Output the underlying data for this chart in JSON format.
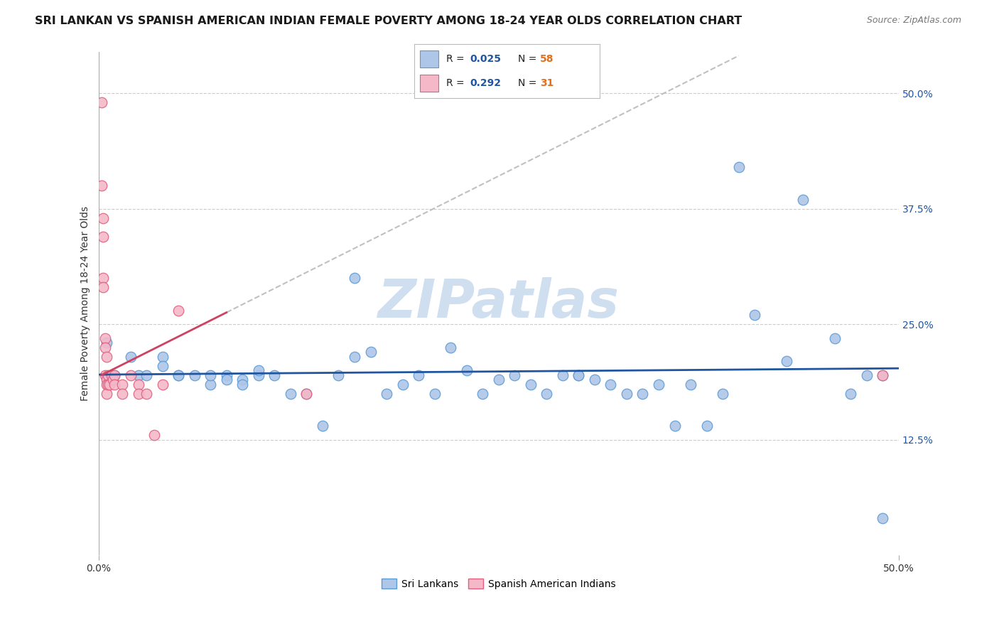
{
  "title": "SRI LANKAN VS SPANISH AMERICAN INDIAN FEMALE POVERTY AMONG 18-24 YEAR OLDS CORRELATION CHART",
  "source": "Source: ZipAtlas.com",
  "ylabel": "Female Poverty Among 18-24 Year Olds",
  "xlim": [
    0.0,
    0.5
  ],
  "ylim": [
    0.0,
    0.545
  ],
  "ytick_positions": [
    0.5,
    0.375,
    0.25,
    0.125
  ],
  "ytick_labels": [
    "50.0%",
    "37.5%",
    "25.0%",
    "12.5%"
  ],
  "sri_lankans_R": 0.025,
  "sri_lankans_N": 58,
  "spanish_R": 0.292,
  "spanish_N": 31,
  "sri_color_fill": "#aec6e8",
  "sri_color_edge": "#5b9bd5",
  "spa_color_fill": "#f4b8c8",
  "spa_color_edge": "#e06080",
  "trend_sri_color": "#2055a0",
  "trend_spa_color": "#d04060",
  "trend_spa_dashed_color": "#c0c0c0",
  "legend_R_color": "#2055a0",
  "legend_N_color": "#e07020",
  "watermark_color": "#d0dff0",
  "grid_color": "#cccccc",
  "bg_color": "#ffffff",
  "sri_x": [
    0.005,
    0.01,
    0.02,
    0.025,
    0.03,
    0.04,
    0.04,
    0.05,
    0.05,
    0.06,
    0.07,
    0.07,
    0.08,
    0.08,
    0.09,
    0.09,
    0.1,
    0.1,
    0.11,
    0.12,
    0.13,
    0.14,
    0.15,
    0.16,
    0.16,
    0.17,
    0.18,
    0.19,
    0.2,
    0.21,
    0.22,
    0.23,
    0.24,
    0.25,
    0.26,
    0.27,
    0.28,
    0.29,
    0.3,
    0.3,
    0.31,
    0.32,
    0.33,
    0.34,
    0.35,
    0.36,
    0.37,
    0.38,
    0.39,
    0.4,
    0.41,
    0.43,
    0.44,
    0.46,
    0.47,
    0.48,
    0.49,
    0.49
  ],
  "sri_y": [
    0.23,
    0.195,
    0.215,
    0.195,
    0.195,
    0.215,
    0.205,
    0.195,
    0.195,
    0.195,
    0.185,
    0.195,
    0.195,
    0.19,
    0.19,
    0.185,
    0.195,
    0.2,
    0.195,
    0.175,
    0.175,
    0.14,
    0.195,
    0.3,
    0.215,
    0.22,
    0.175,
    0.185,
    0.195,
    0.175,
    0.225,
    0.2,
    0.175,
    0.19,
    0.195,
    0.185,
    0.175,
    0.195,
    0.195,
    0.195,
    0.19,
    0.185,
    0.175,
    0.175,
    0.185,
    0.14,
    0.185,
    0.14,
    0.175,
    0.42,
    0.26,
    0.21,
    0.385,
    0.235,
    0.175,
    0.195,
    0.195,
    0.04
  ],
  "spa_x": [
    0.002,
    0.002,
    0.003,
    0.003,
    0.003,
    0.003,
    0.004,
    0.004,
    0.004,
    0.005,
    0.005,
    0.005,
    0.005,
    0.006,
    0.006,
    0.007,
    0.008,
    0.009,
    0.01,
    0.01,
    0.015,
    0.015,
    0.02,
    0.025,
    0.025,
    0.03,
    0.035,
    0.04,
    0.05,
    0.13,
    0.49
  ],
  "spa_y": [
    0.49,
    0.4,
    0.365,
    0.345,
    0.3,
    0.29,
    0.235,
    0.225,
    0.195,
    0.215,
    0.19,
    0.185,
    0.175,
    0.195,
    0.185,
    0.185,
    0.195,
    0.19,
    0.195,
    0.185,
    0.185,
    0.175,
    0.195,
    0.185,
    0.175,
    0.175,
    0.13,
    0.185,
    0.265,
    0.175,
    0.195
  ]
}
